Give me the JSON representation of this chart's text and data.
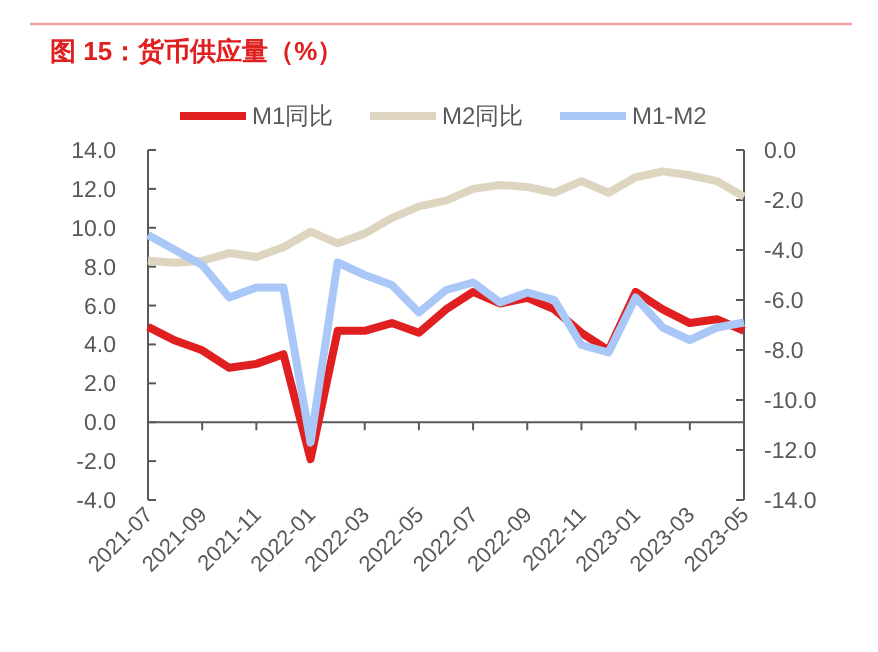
{
  "chart_data": {
    "type": "line",
    "title": "图 15：货币供应量（%）",
    "categories": [
      "2021-07",
      null,
      "2021-09",
      null,
      "2021-11",
      null,
      "2022-01",
      null,
      "2022-03",
      null,
      "2022-05",
      null,
      "2022-07",
      null,
      "2022-09",
      null,
      "2022-11",
      null,
      "2023-01",
      null,
      "2023-03",
      null,
      "2023-05"
    ],
    "series": [
      {
        "name": "M1同比",
        "color": "#e02020",
        "values": [
          4.9,
          4.2,
          3.7,
          2.8,
          3.0,
          3.5,
          -1.9,
          4.7,
          4.7,
          5.1,
          4.6,
          5.8,
          6.7,
          6.1,
          6.4,
          5.8,
          4.6,
          3.7,
          6.7,
          5.8,
          5.1,
          5.3,
          4.7
        ]
      },
      {
        "name": "M2同比",
        "color": "#ddd5bf",
        "values": [
          8.3,
          8.2,
          8.3,
          8.7,
          8.5,
          9.0,
          9.8,
          9.2,
          9.7,
          10.5,
          11.1,
          11.4,
          12.0,
          12.2,
          12.1,
          11.8,
          12.4,
          11.8,
          12.6,
          12.9,
          12.7,
          12.4,
          11.6
        ]
      },
      {
        "name": "M1-M2",
        "color": "#a9c8f8",
        "axis": "y2",
        "values": [
          -3.4,
          -4.0,
          -4.6,
          -5.9,
          -5.5,
          -5.5,
          -11.7,
          -4.5,
          -5.0,
          -5.4,
          -6.5,
          -5.6,
          -5.3,
          -6.1,
          -5.7,
          -6.0,
          -7.8,
          -8.1,
          -5.9,
          -7.1,
          -7.6,
          -7.1,
          -6.9
        ]
      }
    ],
    "ylim": [
      -4,
      14
    ],
    "yticks": [
      {
        "value": -4,
        "label": "-4.0"
      },
      {
        "value": -2,
        "label": "-2.0"
      },
      {
        "value": 0,
        "label": "0.0"
      },
      {
        "value": 2,
        "label": "2.0"
      },
      {
        "value": 4,
        "label": "4.0"
      },
      {
        "value": 6,
        "label": "6.0"
      },
      {
        "value": 8,
        "label": "8.0"
      },
      {
        "value": 10,
        "label": "10.0"
      },
      {
        "value": 12,
        "label": "12.0"
      },
      {
        "value": 14,
        "label": "14.0"
      }
    ],
    "y2lim": [
      -14,
      0
    ],
    "y2ticks": [
      {
        "value": -14,
        "label": "-14.0"
      },
      {
        "value": -12,
        "label": "-12.0"
      },
      {
        "value": -10,
        "label": "-10.0"
      },
      {
        "value": -8,
        "label": "-8.0"
      },
      {
        "value": -6,
        "label": "-6.0"
      },
      {
        "value": -4,
        "label": "-4.0"
      },
      {
        "value": -2,
        "label": "-2.0"
      },
      {
        "value": 0,
        "label": "0.0"
      }
    ],
    "legend": "top",
    "marker": "none",
    "line_style": "solid"
  }
}
